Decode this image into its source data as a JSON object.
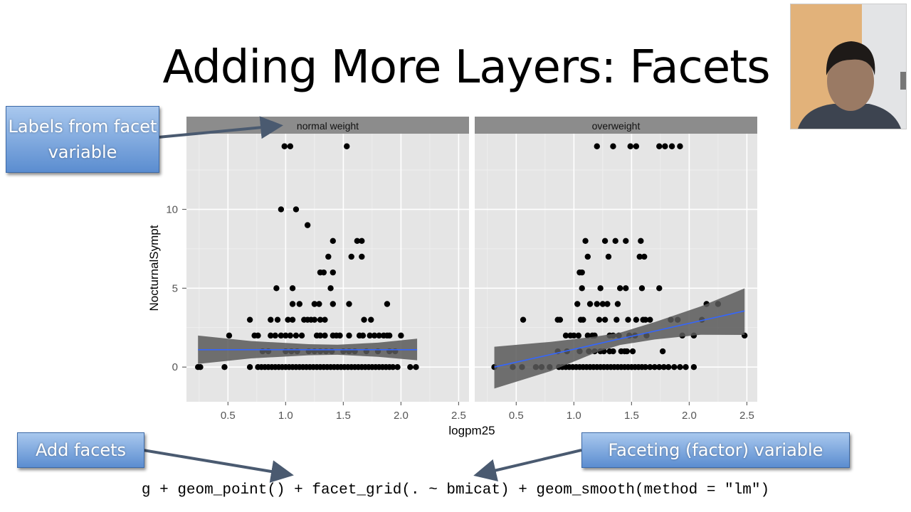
{
  "slide": {
    "title": "Adding More Layers: Facets",
    "callouts": {
      "labels_from_facet": "Labels from facet variable",
      "add_facets": "Add facets",
      "faceting_variable": "Faceting (factor) variable"
    },
    "code": "g + geom_point() + facet_grid(. ~ bmicat) + geom_smooth(method = \"lm\")",
    "colors": {
      "callout": "#5b8dd0",
      "panel_bg": "#e5e5e5",
      "strip_bg": "#8c8c8c",
      "smooth_line": "#3366ff",
      "band": "#595959"
    }
  },
  "chart_data": {
    "type": "scatter",
    "xlabel": "logpm25",
    "ylabel": "NocturnalSympt",
    "xlim": [
      0.14,
      2.59
    ],
    "ylim": [
      -2.2,
      14.8
    ],
    "x_ticks": [
      "0.5",
      "1.0",
      "1.5",
      "2.0",
      "2.5"
    ],
    "y_ticks": [
      "0",
      "5",
      "10"
    ],
    "grid": true,
    "facets": [
      {
        "label": "normal weight",
        "points": [
          [
            0.99,
            14
          ],
          [
            1.04,
            14
          ],
          [
            1.53,
            14
          ],
          [
            0.96,
            10
          ],
          [
            1.09,
            10
          ],
          [
            1.19,
            9
          ],
          [
            1.41,
            8
          ],
          [
            1.62,
            8
          ],
          [
            1.66,
            8
          ],
          [
            1.37,
            7
          ],
          [
            1.57,
            7
          ],
          [
            1.66,
            7
          ],
          [
            1.3,
            6
          ],
          [
            1.33,
            6
          ],
          [
            1.41,
            6
          ],
          [
            0.92,
            5
          ],
          [
            1.06,
            5
          ],
          [
            1.39,
            5
          ],
          [
            1.06,
            4
          ],
          [
            1.12,
            4
          ],
          [
            1.25,
            4
          ],
          [
            1.29,
            4
          ],
          [
            1.41,
            4
          ],
          [
            1.55,
            4
          ],
          [
            1.88,
            4
          ],
          [
            0.69,
            3
          ],
          [
            0.87,
            3
          ],
          [
            0.93,
            3
          ],
          [
            1.02,
            3
          ],
          [
            1.06,
            3
          ],
          [
            1.16,
            3
          ],
          [
            1.19,
            3
          ],
          [
            1.22,
            3
          ],
          [
            1.25,
            3
          ],
          [
            1.3,
            3
          ],
          [
            1.34,
            3
          ],
          [
            1.68,
            3
          ],
          [
            1.74,
            3
          ],
          [
            0.51,
            2
          ],
          [
            0.73,
            2
          ],
          [
            0.76,
            2
          ],
          [
            0.87,
            2
          ],
          [
            0.91,
            2
          ],
          [
            0.96,
            2
          ],
          [
            1.0,
            2
          ],
          [
            1.04,
            2
          ],
          [
            1.09,
            2
          ],
          [
            1.14,
            2
          ],
          [
            1.27,
            2
          ],
          [
            1.3,
            2
          ],
          [
            1.34,
            2
          ],
          [
            1.41,
            2
          ],
          [
            1.44,
            2
          ],
          [
            1.47,
            2
          ],
          [
            1.55,
            2
          ],
          [
            1.64,
            2
          ],
          [
            1.67,
            2
          ],
          [
            1.73,
            2
          ],
          [
            1.77,
            2
          ],
          [
            1.81,
            2
          ],
          [
            1.85,
            2
          ],
          [
            1.88,
            2
          ],
          [
            1.9,
            2
          ],
          [
            2.0,
            2
          ],
          [
            0.8,
            1
          ],
          [
            0.85,
            1
          ],
          [
            1.0,
            1
          ],
          [
            1.05,
            1
          ],
          [
            1.1,
            1
          ],
          [
            1.2,
            1
          ],
          [
            1.25,
            1
          ],
          [
            1.3,
            1
          ],
          [
            1.35,
            1
          ],
          [
            1.4,
            1
          ],
          [
            1.5,
            1
          ],
          [
            1.55,
            1
          ],
          [
            1.6,
            1
          ],
          [
            1.7,
            1
          ],
          [
            1.8,
            1
          ],
          [
            1.9,
            1
          ],
          [
            1.95,
            1
          ],
          [
            0.24,
            0
          ],
          [
            0.26,
            0
          ],
          [
            0.47,
            0
          ],
          [
            0.69,
            0
          ],
          [
            0.76,
            0
          ],
          [
            0.79,
            0
          ],
          [
            0.82,
            0
          ],
          [
            0.85,
            0
          ],
          [
            0.88,
            0
          ],
          [
            0.91,
            0
          ],
          [
            0.94,
            0
          ],
          [
            0.97,
            0
          ],
          [
            1.0,
            0
          ],
          [
            1.03,
            0
          ],
          [
            1.06,
            0
          ],
          [
            1.09,
            0
          ],
          [
            1.12,
            0
          ],
          [
            1.15,
            0
          ],
          [
            1.18,
            0
          ],
          [
            1.21,
            0
          ],
          [
            1.24,
            0
          ],
          [
            1.27,
            0
          ],
          [
            1.3,
            0
          ],
          [
            1.33,
            0
          ],
          [
            1.36,
            0
          ],
          [
            1.39,
            0
          ],
          [
            1.42,
            0
          ],
          [
            1.45,
            0
          ],
          [
            1.48,
            0
          ],
          [
            1.51,
            0
          ],
          [
            1.54,
            0
          ],
          [
            1.57,
            0
          ],
          [
            1.6,
            0
          ],
          [
            1.63,
            0
          ],
          [
            1.66,
            0
          ],
          [
            1.69,
            0
          ],
          [
            1.72,
            0
          ],
          [
            1.75,
            0
          ],
          [
            1.78,
            0
          ],
          [
            1.81,
            0
          ],
          [
            1.84,
            0
          ],
          [
            1.87,
            0
          ],
          [
            1.9,
            0
          ],
          [
            1.93,
            0
          ],
          [
            1.97,
            0
          ],
          [
            2.08,
            0
          ],
          [
            2.13,
            0
          ]
        ],
        "smooth": {
          "x": [
            0.24,
            0.7,
            1.2,
            1.45,
            1.8,
            2.14
          ],
          "y": [
            1.1,
            1.1,
            1.1,
            1.1,
            1.1,
            1.1
          ],
          "ymin": [
            0.2,
            0.55,
            0.75,
            0.78,
            0.65,
            0.43
          ],
          "ymax": [
            2.0,
            1.65,
            1.45,
            1.42,
            1.55,
            1.8
          ]
        }
      },
      {
        "label": "overweight",
        "points": [
          [
            1.2,
            14
          ],
          [
            1.34,
            14
          ],
          [
            1.49,
            14
          ],
          [
            1.54,
            14
          ],
          [
            1.74,
            14
          ],
          [
            1.79,
            14
          ],
          [
            1.85,
            14
          ],
          [
            1.92,
            14
          ],
          [
            1.1,
            8
          ],
          [
            1.27,
            8
          ],
          [
            1.36,
            8
          ],
          [
            1.45,
            8
          ],
          [
            1.58,
            8
          ],
          [
            1.12,
            7
          ],
          [
            1.3,
            7
          ],
          [
            1.57,
            7
          ],
          [
            1.61,
            7
          ],
          [
            1.05,
            6
          ],
          [
            1.07,
            6
          ],
          [
            1.07,
            5
          ],
          [
            1.23,
            5
          ],
          [
            1.4,
            5
          ],
          [
            1.45,
            5
          ],
          [
            1.59,
            5
          ],
          [
            1.74,
            5
          ],
          [
            1.03,
            4
          ],
          [
            1.14,
            4
          ],
          [
            1.2,
            4
          ],
          [
            1.25,
            4
          ],
          [
            1.29,
            4
          ],
          [
            1.38,
            4
          ],
          [
            2.15,
            4
          ],
          [
            2.25,
            4
          ],
          [
            0.56,
            3
          ],
          [
            0.86,
            3
          ],
          [
            0.88,
            3
          ],
          [
            1.06,
            3
          ],
          [
            1.08,
            3
          ],
          [
            1.22,
            3
          ],
          [
            1.27,
            3
          ],
          [
            1.37,
            3
          ],
          [
            1.47,
            3
          ],
          [
            1.54,
            3
          ],
          [
            1.6,
            3
          ],
          [
            1.62,
            3
          ],
          [
            1.66,
            3
          ],
          [
            1.84,
            3
          ],
          [
            1.9,
            3
          ],
          [
            2.11,
            3
          ],
          [
            0.93,
            2
          ],
          [
            0.97,
            2
          ],
          [
            1.0,
            2
          ],
          [
            1.04,
            2
          ],
          [
            1.12,
            2
          ],
          [
            1.16,
            2
          ],
          [
            1.18,
            2
          ],
          [
            1.31,
            2
          ],
          [
            1.34,
            2
          ],
          [
            1.39,
            2
          ],
          [
            1.48,
            2
          ],
          [
            1.53,
            2
          ],
          [
            1.63,
            2
          ],
          [
            1.94,
            2
          ],
          [
            2.04,
            2
          ],
          [
            2.48,
            2
          ],
          [
            0.86,
            1
          ],
          [
            0.94,
            1
          ],
          [
            1.05,
            1
          ],
          [
            1.13,
            1
          ],
          [
            1.18,
            1
          ],
          [
            1.23,
            1
          ],
          [
            1.26,
            1
          ],
          [
            1.31,
            1
          ],
          [
            1.34,
            1
          ],
          [
            1.41,
            1
          ],
          [
            1.44,
            1
          ],
          [
            1.46,
            1
          ],
          [
            1.51,
            1
          ],
          [
            1.77,
            1
          ],
          [
            0.31,
            0
          ],
          [
            0.47,
            0
          ],
          [
            0.55,
            0
          ],
          [
            0.67,
            0
          ],
          [
            0.72,
            0
          ],
          [
            0.79,
            0
          ],
          [
            0.87,
            0
          ],
          [
            0.9,
            0
          ],
          [
            0.93,
            0
          ],
          [
            0.96,
            0
          ],
          [
            0.99,
            0
          ],
          [
            1.02,
            0
          ],
          [
            1.05,
            0
          ],
          [
            1.08,
            0
          ],
          [
            1.11,
            0
          ],
          [
            1.14,
            0
          ],
          [
            1.17,
            0
          ],
          [
            1.2,
            0
          ],
          [
            1.23,
            0
          ],
          [
            1.26,
            0
          ],
          [
            1.29,
            0
          ],
          [
            1.32,
            0
          ],
          [
            1.35,
            0
          ],
          [
            1.38,
            0
          ],
          [
            1.41,
            0
          ],
          [
            1.44,
            0
          ],
          [
            1.47,
            0
          ],
          [
            1.5,
            0
          ],
          [
            1.53,
            0
          ],
          [
            1.56,
            0
          ],
          [
            1.59,
            0
          ],
          [
            1.62,
            0
          ],
          [
            1.66,
            0
          ],
          [
            1.7,
            0
          ],
          [
            1.74,
            0
          ],
          [
            1.78,
            0
          ],
          [
            1.82,
            0
          ],
          [
            1.87,
            0
          ],
          [
            1.92,
            0
          ],
          [
            1.97,
            0
          ],
          [
            2.04,
            0
          ]
        ],
        "smooth": {
          "x": [
            0.31,
            0.8,
            1.2,
            1.4,
            1.7,
            2.1,
            2.48
          ],
          "y": [
            0.0,
            0.8,
            1.46,
            1.79,
            2.28,
            2.94,
            3.56
          ],
          "ymin": [
            -1.36,
            -0.25,
            0.95,
            1.4,
            1.75,
            2.05,
            2.04
          ],
          "ymax": [
            1.29,
            1.6,
            1.95,
            2.18,
            2.85,
            3.85,
            4.99
          ]
        }
      }
    ]
  }
}
